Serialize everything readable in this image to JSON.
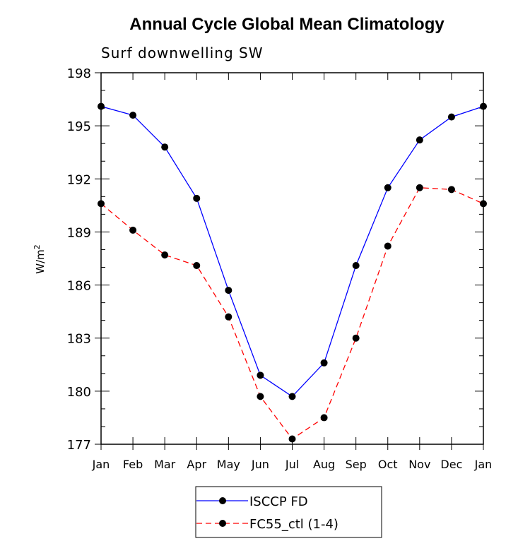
{
  "chart_data": {
    "type": "line",
    "title": "Annual Cycle Global Mean Climatology",
    "subtitle": "Surf downwelling SW",
    "ylabel": "W/m",
    "ylabel_sup": "2",
    "xlabel": "",
    "categories": [
      "Jan",
      "Feb",
      "Mar",
      "Apr",
      "May",
      "Jun",
      "Jul",
      "Aug",
      "Sep",
      "Oct",
      "Nov",
      "Dec",
      "Jan"
    ],
    "yticks": [
      177,
      180,
      183,
      186,
      189,
      192,
      195,
      198
    ],
    "ylim": [
      177,
      198
    ],
    "grid": false,
    "legend_position": "bottom",
    "series": [
      {
        "name": "ISCCP FD",
        "color": "#0000ff",
        "dash": "solid",
        "values": [
          196.1,
          195.6,
          193.8,
          190.9,
          185.7,
          180.9,
          179.7,
          181.6,
          187.1,
          191.5,
          194.2,
          195.5,
          196.1
        ]
      },
      {
        "name": "FC55_ctl (1-4)",
        "color": "#ff0000",
        "dash": "dashed",
        "values": [
          190.6,
          189.1,
          187.7,
          187.1,
          184.2,
          179.7,
          177.3,
          178.5,
          183.0,
          188.2,
          191.5,
          191.4,
          190.6
        ]
      }
    ]
  }
}
